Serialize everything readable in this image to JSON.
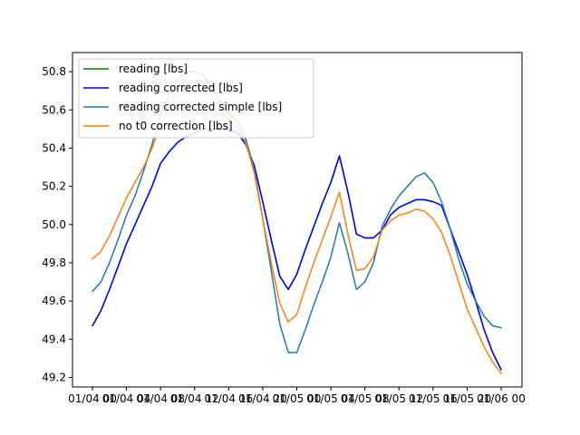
{
  "chart_data": {
    "type": "line",
    "title": "",
    "xlabel": "",
    "ylabel": "",
    "ylim": [
      49.15,
      50.9
    ],
    "x_ticks": [
      "01/04 00",
      "01/04 04",
      "01/04 08",
      "01/04 12",
      "01/04 16",
      "01/04 20",
      "01/05 00",
      "01/05 04",
      "01/05 08",
      "01/05 12",
      "01/05 16",
      "01/05 20",
      "01/06 00"
    ],
    "x_tick_display": [
      "01/04 00",
      "01/04 04",
      "01/04 08",
      "01/04 12",
      "01/04 16",
      "01/04 20",
      "01/05 00",
      "01/05 04",
      "01/05 08",
      "01/05 12",
      "01/05 16",
      "01/05 20",
      "01/06 00"
    ],
    "y_ticks": [
      49.2,
      49.4,
      49.6,
      49.8,
      50.0,
      50.2,
      50.4,
      50.6,
      50.8
    ],
    "y_tick_labels": [
      "49.2",
      "49.4",
      "49.6",
      "49.8",
      "50.0",
      "50.2",
      "50.4",
      "50.6",
      "50.8"
    ],
    "x_hours": [
      0,
      1,
      2,
      3,
      4,
      5,
      6,
      7,
      8,
      9,
      10,
      11,
      12,
      13,
      14,
      15,
      16,
      17,
      18,
      19,
      20,
      21,
      22,
      23,
      24,
      25,
      26,
      27,
      28,
      29,
      30,
      31,
      32,
      33,
      34,
      35,
      36,
      37,
      38,
      39,
      40,
      41,
      42,
      43,
      44,
      45,
      46,
      47,
      48
    ],
    "legend_position": "top-left",
    "series": [
      {
        "name": "reading [lbs]",
        "color": "#008000",
        "values": [
          49.47,
          49.55,
          49.66,
          49.78,
          49.9,
          50.0,
          50.1,
          50.2,
          50.32,
          50.38,
          50.43,
          50.46,
          50.48,
          50.5,
          50.5,
          50.5,
          50.5,
          50.48,
          50.42,
          50.31,
          50.12,
          49.92,
          49.73,
          49.66,
          49.74,
          49.87,
          49.99,
          50.11,
          50.22,
          50.36,
          50.17,
          49.95,
          49.93,
          49.93,
          49.97,
          50.05,
          50.09,
          50.11,
          50.13,
          50.13,
          50.12,
          50.1,
          49.98,
          49.86,
          49.74,
          49.6,
          49.45,
          49.33,
          49.24
        ]
      },
      {
        "name": "reading corrected [lbs]",
        "color": "#0000ff",
        "values": [
          49.47,
          49.55,
          49.66,
          49.78,
          49.9,
          50.0,
          50.1,
          50.2,
          50.32,
          50.38,
          50.43,
          50.46,
          50.48,
          50.5,
          50.5,
          50.5,
          50.5,
          50.48,
          50.42,
          50.31,
          50.12,
          49.92,
          49.73,
          49.66,
          49.74,
          49.87,
          49.99,
          50.11,
          50.22,
          50.36,
          50.17,
          49.95,
          49.93,
          49.93,
          49.97,
          50.05,
          50.09,
          50.11,
          50.13,
          50.13,
          50.12,
          50.1,
          49.98,
          49.86,
          49.74,
          49.6,
          49.45,
          49.33,
          49.24
        ]
      },
      {
        "name": "reading corrected simple [lbs]",
        "color": "#1f77b4",
        "values": [
          49.65,
          49.7,
          49.8,
          49.92,
          50.05,
          50.15,
          50.28,
          50.42,
          50.58,
          50.68,
          50.76,
          50.8,
          50.8,
          50.78,
          50.72,
          50.64,
          50.58,
          50.54,
          50.45,
          50.29,
          50.03,
          49.76,
          49.48,
          49.33,
          49.33,
          49.45,
          49.58,
          49.7,
          49.83,
          50.01,
          49.85,
          49.66,
          49.7,
          49.8,
          49.99,
          50.08,
          50.15,
          50.2,
          50.25,
          50.27,
          50.22,
          50.12,
          49.98,
          49.82,
          49.69,
          49.6,
          49.52,
          49.47,
          49.46
        ]
      },
      {
        "name": "no t0 correction [lbs]",
        "color": "#ff7f0e",
        "values": [
          49.82,
          49.86,
          49.94,
          50.04,
          50.14,
          50.22,
          50.3,
          50.4,
          50.52,
          50.62,
          50.69,
          50.72,
          50.72,
          50.7,
          50.66,
          50.6,
          50.55,
          50.51,
          50.43,
          50.27,
          50.03,
          49.8,
          49.59,
          49.49,
          49.53,
          49.67,
          49.8,
          49.92,
          50.04,
          50.17,
          49.95,
          49.76,
          49.77,
          49.83,
          49.97,
          50.02,
          50.05,
          50.06,
          50.08,
          50.07,
          50.03,
          49.96,
          49.84,
          49.7,
          49.56,
          49.46,
          49.36,
          49.28,
          49.22
        ]
      }
    ]
  }
}
